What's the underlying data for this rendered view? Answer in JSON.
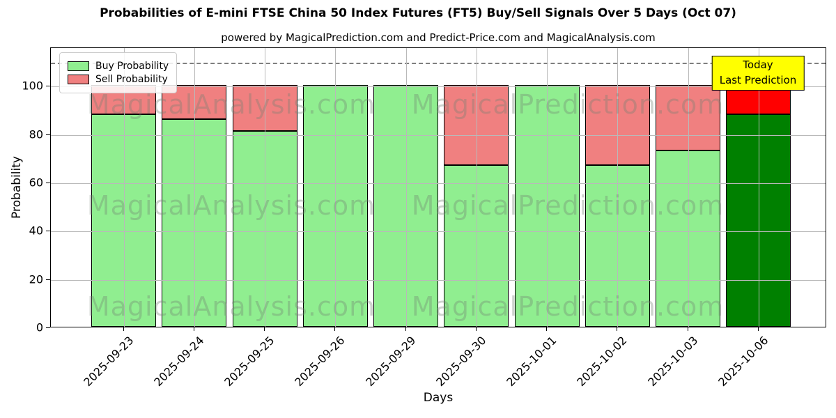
{
  "chart": {
    "title": "Probabilities of E-mini FTSE China 50 Index Futures (FT5) Buy/Sell Signals Over 5 Days (Oct 07)",
    "subtitle": "powered by MagicalPrediction.com and Predict-Price.com and MagicalAnalysis.com"
  },
  "annotation": {
    "line1": "Today",
    "line2": "Last Prediction",
    "bg_color": "#ffff00"
  },
  "watermarks": {
    "left": "MagicalAnalysis.com",
    "right": "MagicalPrediction.com"
  },
  "colors": {
    "buy": "#90EE90",
    "sell": "#F08080",
    "today_buy": "#008000",
    "today_sell": "#FF0000",
    "bar_edge": "#000000",
    "grid": "#b9b9b9",
    "threshold": "#7f7f7f"
  },
  "chart_data": {
    "type": "bar",
    "stacked": true,
    "title": "Probabilities of E-mini FTSE China 50 Index Futures (FT5) Buy/Sell Signals Over 5 Days (Oct 07)",
    "subtitle": "powered by MagicalPrediction.com and Predict-Price.com and MagicalAnalysis.com",
    "xlabel": "Days",
    "ylabel": "Probability",
    "categories": [
      "2025-09-23",
      "2025-09-24",
      "2025-09-25",
      "2025-09-26",
      "2025-09-29",
      "2025-09-30",
      "2025-10-01",
      "2025-10-02",
      "2025-10-03",
      "2025-10-06"
    ],
    "series": [
      {
        "name": "Buy Probability",
        "color": "#90EE90",
        "values": [
          88,
          86,
          81,
          100,
          100,
          67,
          100,
          67,
          73,
          88
        ]
      },
      {
        "name": "Sell Probability",
        "color": "#F08080",
        "values": [
          12,
          14,
          19,
          0,
          0,
          33,
          0,
          33,
          27,
          12
        ]
      }
    ],
    "today": {
      "index": 9,
      "buy_color": "#008000",
      "sell_color": "#FF0000"
    },
    "ylim": [
      0,
      116
    ],
    "yticks": [
      0,
      20,
      40,
      60,
      80,
      100
    ],
    "threshold_line": {
      "value": 110,
      "style": "dashed",
      "color": "#7f7f7f"
    },
    "grid": true,
    "legend_position": "upper left"
  }
}
